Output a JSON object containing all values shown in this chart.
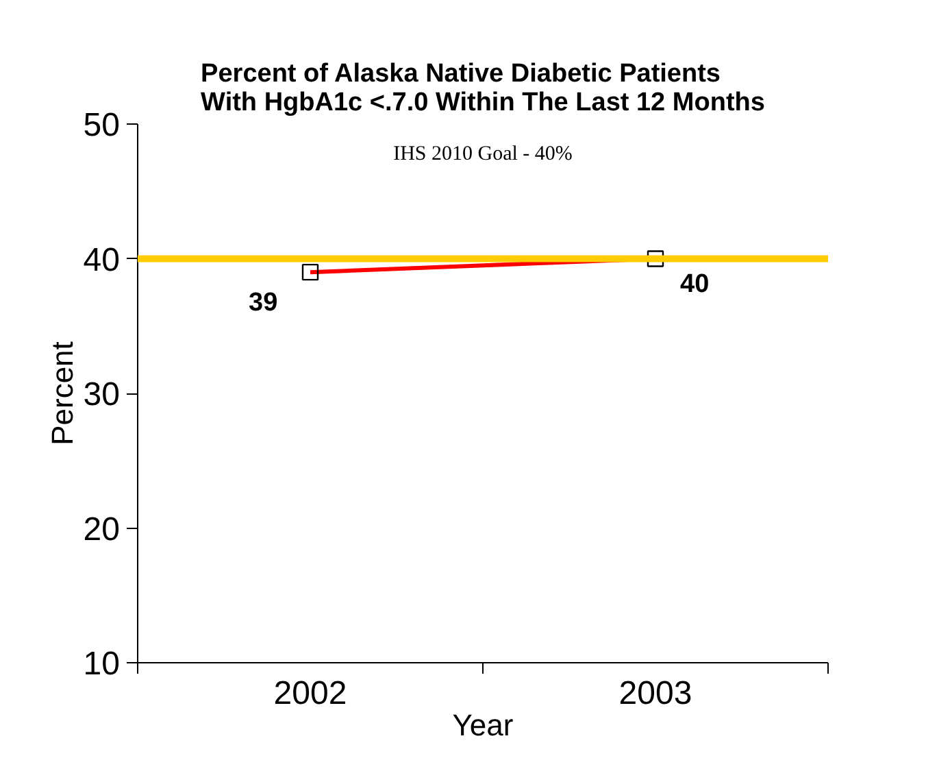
{
  "chart_data": {
    "type": "line",
    "title": "Percent of Alaska Native Diabetic Patients\nWith HgbA1c <.7.0 Within The Last 12 Months",
    "xlabel": "Year",
    "ylabel": "Percent",
    "categories": [
      "2002",
      "2003"
    ],
    "series": [
      {
        "color": "#ff0000",
        "values": [
          39,
          40
        ]
      }
    ],
    "ylim": [
      10,
      50
    ],
    "yticks": [
      10,
      20,
      30,
      40,
      50
    ],
    "marker": "square",
    "data_labels": true,
    "annotations": [
      "IHS 2010 Goal - 40%"
    ],
    "ref_lines": [
      {
        "axis": "y",
        "value": 40,
        "color": "#ffcc00"
      }
    ]
  }
}
